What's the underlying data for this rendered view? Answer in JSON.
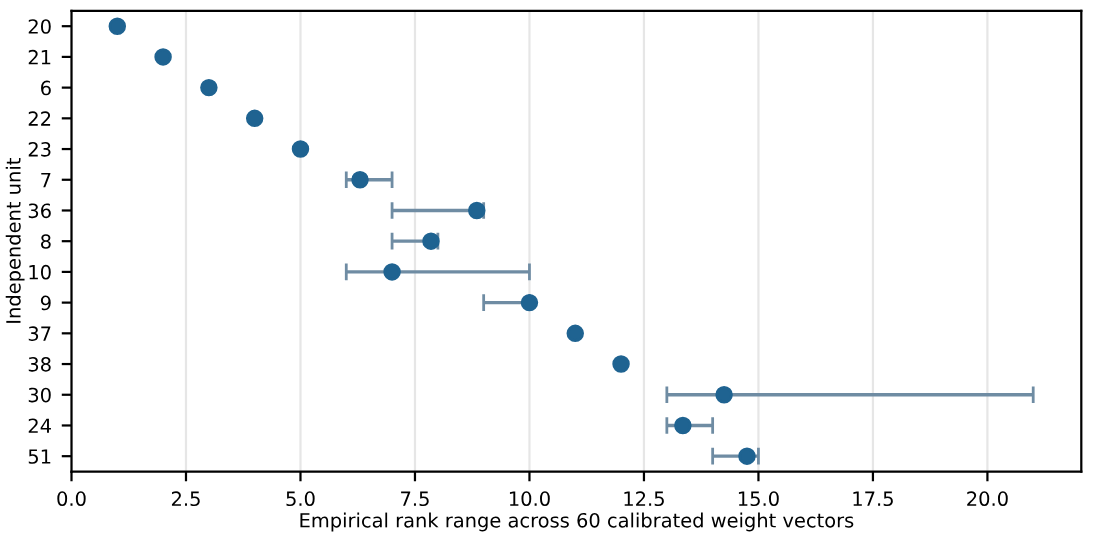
{
  "chart_data": {
    "type": "scatter",
    "orientation": "horizontal",
    "xlabel": "Empirical rank range across 60 calibrated weight vectors",
    "ylabel": "Independent unit",
    "categories": [
      "20",
      "21",
      "6",
      "22",
      "23",
      "7",
      "36",
      "8",
      "10",
      "9",
      "37",
      "38",
      "30",
      "24",
      "51"
    ],
    "values": [
      1,
      2,
      3,
      4,
      5,
      6.3,
      8.85,
      7.85,
      7,
      10,
      11,
      12,
      14.25,
      13.35,
      14.75
    ],
    "errors": [
      null,
      null,
      null,
      null,
      null,
      [
        6,
        7
      ],
      [
        7,
        9
      ],
      [
        7,
        8
      ],
      [
        6,
        10
      ],
      [
        9,
        10
      ],
      null,
      null,
      [
        13,
        21
      ],
      [
        13,
        14
      ],
      [
        14,
        15
      ]
    ],
    "color": "#1f6391",
    "marker": "circle",
    "grid": "x",
    "xlim": [
      0,
      22.05
    ],
    "xticks": [
      {
        "value": 0,
        "label": "0.0"
      },
      {
        "value": 2.5,
        "label": "2.5"
      },
      {
        "value": 5,
        "label": "5.0"
      },
      {
        "value": 7.5,
        "label": "7.5"
      },
      {
        "value": 10,
        "label": "10.0"
      },
      {
        "value": 12.5,
        "label": "12.5"
      },
      {
        "value": 15,
        "label": "15.0"
      },
      {
        "value": 17.5,
        "label": "17.5"
      },
      {
        "value": 20,
        "label": "20.0"
      }
    ]
  }
}
